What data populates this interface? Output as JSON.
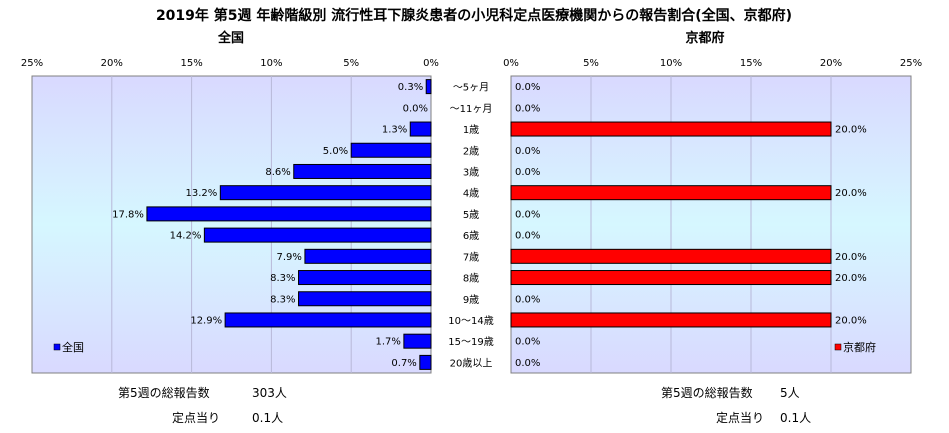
{
  "title": "2019年 第5週 年齢階級別 流行性耳下腺炎患者の小児科定点医療機関からの報告割合(全国、京都府)",
  "colors": {
    "national": "#0000ff",
    "kyoto": "#ff0000"
  },
  "chart_data": [
    {
      "type": "bar",
      "orientation": "horizontal",
      "direction": "right-to-left",
      "subtitle": "全国",
      "xlim": [
        0,
        25
      ],
      "ticks": [
        "25%",
        "20%",
        "15%",
        "10%",
        "5%",
        "0%"
      ],
      "legend": "全国",
      "legend_position": "bottom-left",
      "categories": [
        "～5ヶ月",
        "～11ヶ月",
        "1歳",
        "2歳",
        "3歳",
        "4歳",
        "5歳",
        "6歳",
        "7歳",
        "8歳",
        "9歳",
        "10～14歳",
        "15～19歳",
        "20歳以上"
      ],
      "values": [
        0.3,
        0.0,
        1.3,
        5.0,
        8.6,
        13.2,
        17.8,
        14.2,
        7.9,
        8.3,
        8.3,
        12.9,
        1.7,
        0.7
      ],
      "value_labels": [
        "0.3%",
        "0.0%",
        "1.3%",
        "5.0%",
        "8.6%",
        "13.2%",
        "17.8%",
        "14.2%",
        "7.9%",
        "8.3%",
        "8.3%",
        "12.9%",
        "1.7%",
        "0.7%"
      ]
    },
    {
      "type": "bar",
      "orientation": "horizontal",
      "direction": "left-to-right",
      "subtitle": "京都府",
      "xlim": [
        0,
        25
      ],
      "ticks": [
        "0%",
        "5%",
        "10%",
        "15%",
        "20%",
        "25%"
      ],
      "legend": "京都府",
      "legend_position": "bottom-right",
      "categories": [
        "～5ヶ月",
        "～11ヶ月",
        "1歳",
        "2歳",
        "3歳",
        "4歳",
        "5歳",
        "6歳",
        "7歳",
        "8歳",
        "9歳",
        "10～14歳",
        "15～19歳",
        "20歳以上"
      ],
      "values": [
        0.0,
        0.0,
        20.0,
        0.0,
        0.0,
        20.0,
        0.0,
        0.0,
        20.0,
        20.0,
        0.0,
        20.0,
        0.0,
        0.0
      ],
      "value_labels": [
        "0.0%",
        "0.0%",
        "20.0%",
        "0.0%",
        "0.0%",
        "20.0%",
        "0.0%",
        "0.0%",
        "20.0%",
        "20.0%",
        "0.0%",
        "20.0%",
        "0.0%",
        "0.0%"
      ]
    }
  ],
  "footer": {
    "national": {
      "total_label": "第5週の総報告数",
      "total_value": "303人",
      "per_site_label": "定点当り",
      "per_site_value": "0.1人"
    },
    "kyoto": {
      "total_label": "第5週の総報告数",
      "total_value": "5人",
      "per_site_label": "定点当り",
      "per_site_value": "0.1人"
    }
  }
}
